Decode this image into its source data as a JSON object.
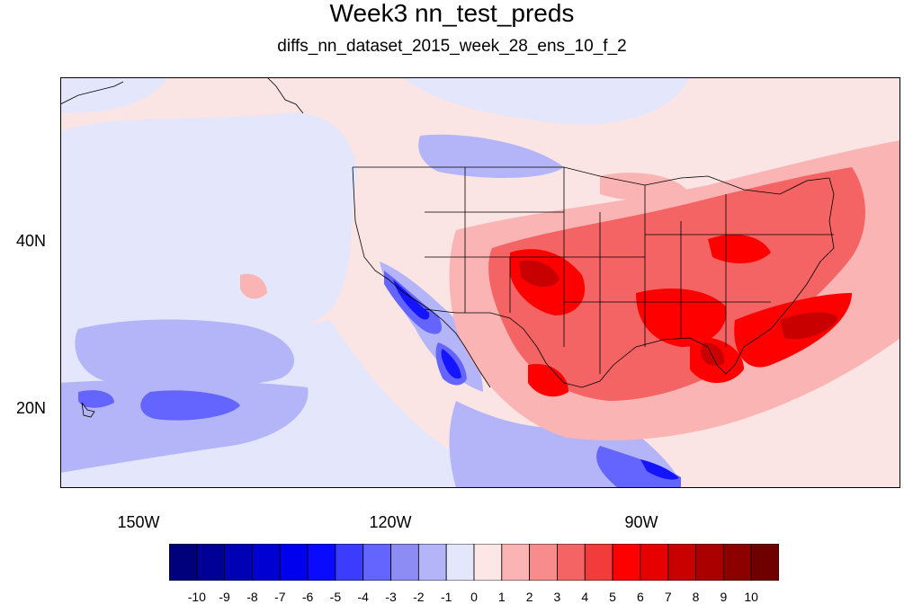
{
  "title": "Week3 nn_test_preds",
  "subtitle": "diffs_nn_dataset_2015_week_28_ens_10_f_2",
  "axes": {
    "lat_labels": [
      "40N",
      "20N"
    ],
    "lon_labels": [
      "150W",
      "120W",
      "90W"
    ]
  },
  "colorbar": {
    "labels": [
      "-10",
      "-9",
      "-8",
      "-7",
      "-6",
      "-5",
      "-4",
      "-3",
      "-2",
      "-1",
      "0",
      "1",
      "2",
      "3",
      "4",
      "5",
      "6",
      "7",
      "8",
      "9",
      "10"
    ],
    "colors": [
      "#00007a",
      "#000096",
      "#0000b4",
      "#0000d2",
      "#0000ee",
      "#0a0aff",
      "#3c3cff",
      "#6464ff",
      "#8c8cf4",
      "#b4b4f8",
      "#e4e6fb",
      "#fde6e6",
      "#fbb4b4",
      "#f88c8c",
      "#f56464",
      "#f23c3c",
      "#ff0000",
      "#e60000",
      "#c80000",
      "#aa0000",
      "#8c0000",
      "#6e0000"
    ]
  },
  "map": {
    "background_color": "#fbe4e4",
    "region": "North Pacific, North America and Gulf of Mexico"
  }
}
